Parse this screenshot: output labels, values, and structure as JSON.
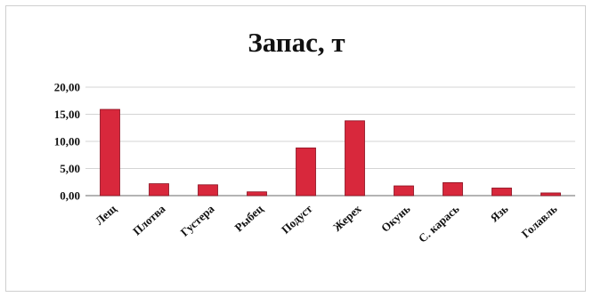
{
  "chart_data": {
    "type": "bar",
    "title": "Запас, т",
    "categories": [
      "Лещ",
      "Плотва",
      "Густера",
      "Рыбец",
      "Подуст",
      "Жерех",
      "Окунь",
      "С. карась",
      "Язь",
      "Голавль"
    ],
    "values": [
      15.9,
      2.2,
      2.0,
      0.7,
      8.8,
      13.8,
      1.8,
      2.4,
      1.4,
      0.5
    ],
    "ylim": [
      0,
      20
    ],
    "yticks": [
      "0,00",
      "5,00",
      "10,00",
      "15,00",
      "20,00"
    ],
    "xlabel": "",
    "ylabel": "",
    "grid": true,
    "legend": "none",
    "bar_color": "#d8283c",
    "bar_edge_color": "#8a1020"
  }
}
